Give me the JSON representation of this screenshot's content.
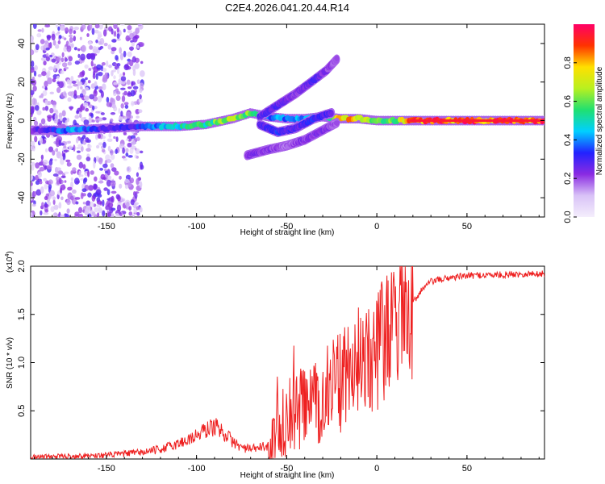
{
  "chart_data": [
    {
      "type": "heatmap",
      "title": "C2E4.2026.041.20.44.R14",
      "xlabel": "Height of straight line (km)",
      "ylabel": "Frequency (Hz)",
      "xlim": [
        -192,
        93
      ],
      "ylim": [
        -50,
        50
      ],
      "xticks": [
        -150,
        -100,
        -50,
        0,
        50
      ],
      "xtick_labels": [
        "-150",
        "-100",
        "-50",
        "0",
        "50"
      ],
      "yticks": [
        -40,
        -20,
        0,
        20,
        40
      ],
      "ytick_labels": [
        "-40",
        "-20",
        "0",
        "20",
        "40"
      ],
      "colorbar": {
        "label": "Normalized spectral amplitude",
        "range": [
          0,
          1
        ],
        "ticks": [
          0.0,
          0.2,
          0.4,
          0.6,
          0.8
        ],
        "tick_labels": [
          "0.0",
          "0.2",
          "0.4",
          "0.6",
          "0.8"
        ],
        "colors": [
          "#f4eefc",
          "#d9c2f7",
          "#8a2be2",
          "#2222ff",
          "#00d0ff",
          "#20e070",
          "#b8f020",
          "#ffe000",
          "#ff3300",
          "#ff0066"
        ]
      },
      "features": [
        {
          "name": "main trace",
          "x": [
            -192,
            -170,
            -150,
            -130,
            -110,
            -95,
            -80,
            -70,
            -60,
            -50,
            -40,
            -30,
            -20,
            -10,
            0,
            10,
            20,
            93
          ],
          "y": [
            -5,
            -5,
            -4,
            -3,
            -3,
            -2,
            1,
            4,
            2,
            1,
            1,
            2,
            1,
            1,
            0,
            0,
            0,
            0
          ],
          "amplitude": [
            0.25,
            0.45,
            0.3,
            0.35,
            0.55,
            0.6,
            0.7,
            0.65,
            0.4,
            0.45,
            0.45,
            0.5,
            0.9,
            0.8,
            0.7,
            0.7,
            0.95,
            0.95
          ]
        },
        {
          "name": "upper rising branch",
          "x": [
            -65,
            -55,
            -45,
            -35,
            -28,
            -22
          ],
          "y": [
            2,
            8,
            14,
            21,
            26,
            32
          ],
          "amplitude": [
            0.3,
            0.3,
            0.25,
            0.3,
            0.25,
            0.2
          ]
        },
        {
          "name": "middle descending branch",
          "x": [
            -65,
            -55,
            -45,
            -35,
            -25
          ],
          "y": [
            -2,
            -6,
            -4,
            1,
            4
          ],
          "amplitude": [
            0.3,
            0.35,
            0.3,
            0.35,
            0.3
          ]
        },
        {
          "name": "lower branch",
          "x": [
            -72,
            -60,
            -50,
            -40,
            -30,
            -22
          ],
          "y": [
            -18,
            -15,
            -13,
            -10,
            -5,
            -1
          ],
          "amplitude": [
            0.25,
            0.25,
            0.2,
            0.25,
            0.25,
            0.2
          ]
        }
      ],
      "noise_region": {
        "x_range": [
          -192,
          -130
        ],
        "description": "scattered low-amplitude noise"
      }
    },
    {
      "type": "line",
      "title": "",
      "xlabel": "Height of straight line (km)",
      "ylabel": "SNR (10 * v/v)",
      "y_multiplier": "(x10",
      "y_multiplier_exp": "4",
      "y_multiplier_close": ")",
      "xlim": [
        -192,
        93
      ],
      "ylim": [
        0,
        2.0
      ],
      "xticks": [
        -150,
        -100,
        -50,
        0,
        50
      ],
      "xtick_labels": [
        "-150",
        "-100",
        "-50",
        "0",
        "50"
      ],
      "yticks": [
        0.5,
        1.0,
        1.5,
        2.0
      ],
      "ytick_labels": [
        "0.5",
        "1.0",
        "1.5",
        "2.0"
      ],
      "color": "#ee2020",
      "series": [
        {
          "name": "SNR",
          "x": [
            -192,
            -170,
            -150,
            -130,
            -120,
            -110,
            -100,
            -95,
            -90,
            -85,
            -80,
            -75,
            -70,
            -65,
            -60,
            -55,
            -50,
            -45,
            -40,
            -35,
            -30,
            -25,
            -20,
            -15,
            -10,
            -5,
            0,
            5,
            10,
            15,
            20,
            25,
            30,
            40,
            50,
            60,
            70,
            80,
            93
          ],
          "y": [
            0.02,
            0.03,
            0.04,
            0.07,
            0.1,
            0.16,
            0.24,
            0.3,
            0.34,
            0.28,
            0.18,
            0.12,
            0.1,
            0.12,
            0.14,
            0.28,
            0.42,
            0.5,
            0.54,
            0.58,
            0.65,
            0.72,
            0.8,
            0.9,
            1.0,
            1.07,
            1.15,
            1.22,
            1.3,
            1.45,
            1.62,
            1.76,
            1.84,
            1.88,
            1.9,
            1.91,
            1.91,
            1.92,
            1.92
          ]
        }
      ]
    }
  ]
}
